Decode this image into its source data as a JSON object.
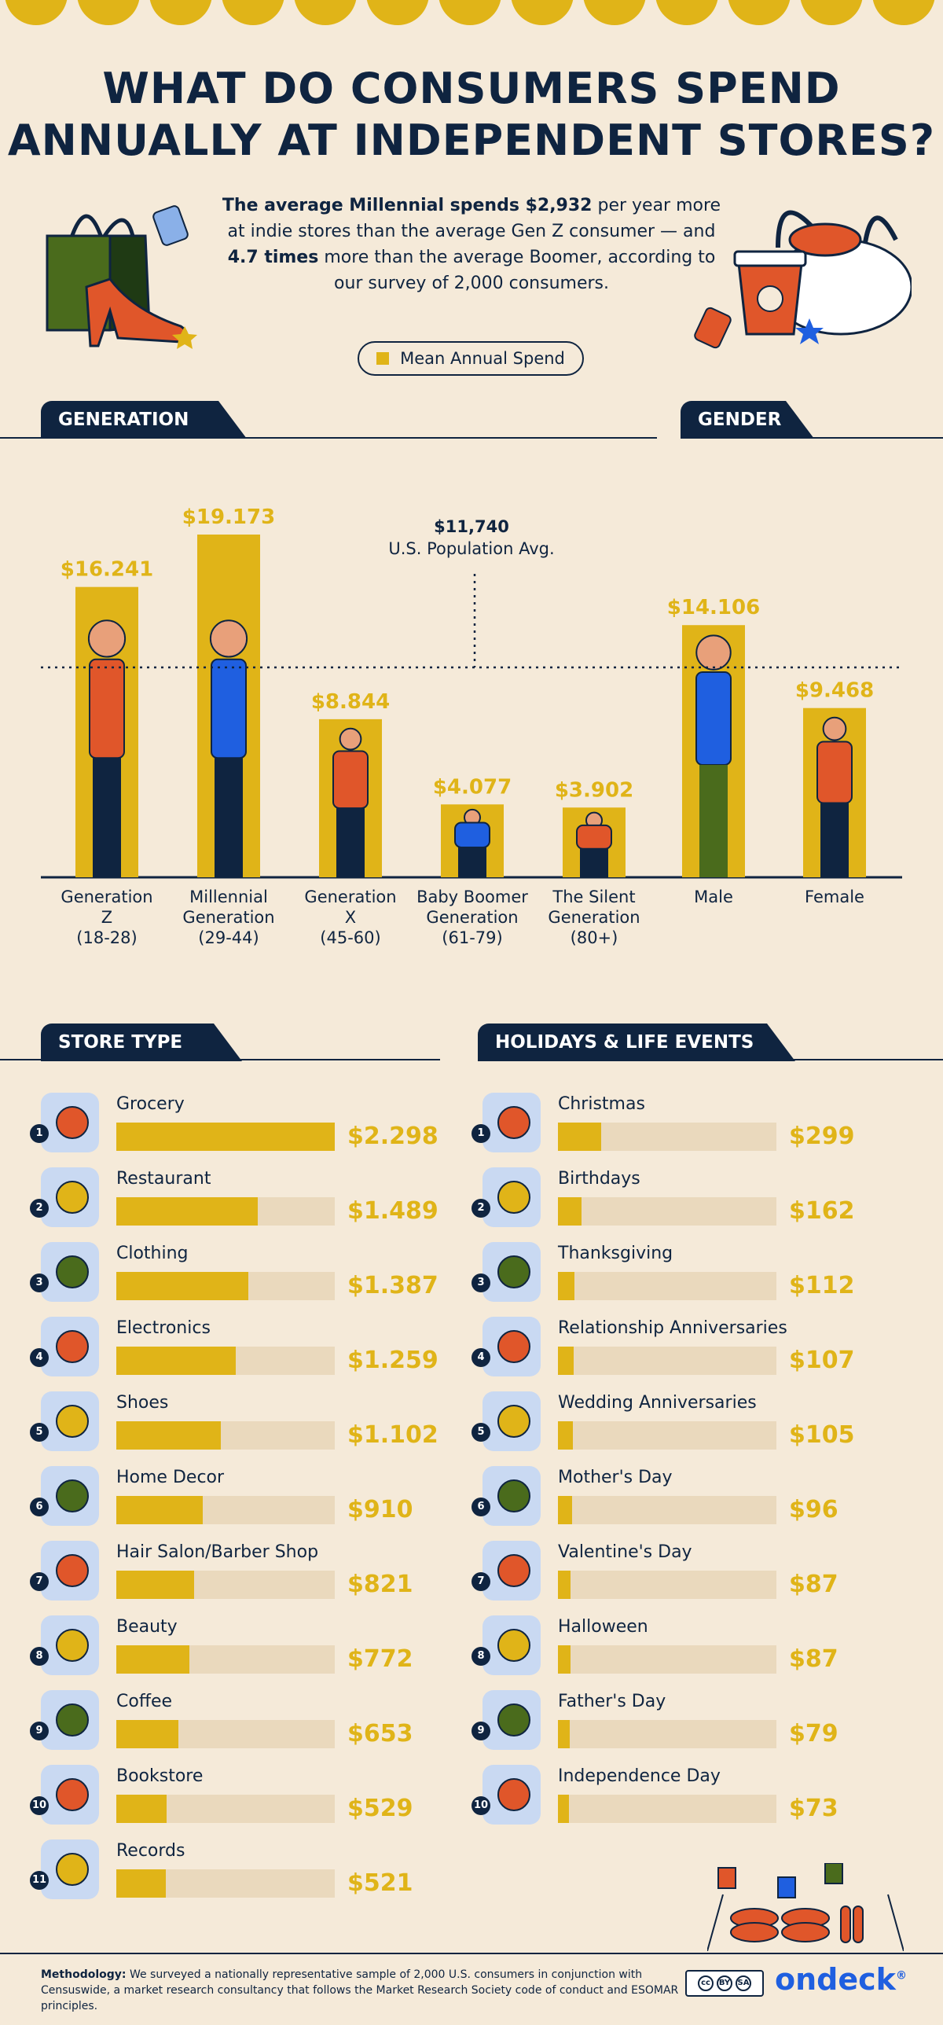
{
  "title_line1": "WHAT DO CONSUMERS SPEND",
  "title_line2": "ANNUALLY AT INDEPENDENT STORES?",
  "intro": {
    "p1_bold": "The average Millennial spends $2,932",
    "p2": " per year more at indie stores than the average Gen Z consumer — and ",
    "p3_bold": "4.7 times",
    "p4": " more than the average Boomer, according to our survey of 2,000 consumers."
  },
  "legend_label": "Mean Annual Spend",
  "colors": {
    "navy": "#0f2440",
    "gold": "#e0b418",
    "cream": "#f5ead9",
    "track": "#ead9bd",
    "icon_bg": "#c9d9f2",
    "brand_blue": "#1f5fe0"
  },
  "sections": {
    "generation": "GENERATION",
    "gender": "GENDER",
    "store_type": "STORE TYPE",
    "holidays": "HOLIDAYS & LIFE EVENTS"
  },
  "average": {
    "value_label": "$11,740",
    "label": "U.S. Population Avg.",
    "value": 11740
  },
  "chart_data": {
    "type": "bar",
    "categories": [
      "Generation Z (18-28)",
      "Millennial Generation (29-44)",
      "Generation X (45-60)",
      "Baby Boomer Generation (61-79)",
      "The Silent Generation (80+)",
      "Male",
      "Female"
    ],
    "category_labels": [
      [
        "Generation",
        "Z",
        "(18-28)"
      ],
      [
        "Millennial",
        "Generation",
        "(29-44)"
      ],
      [
        "Generation",
        "X",
        "(45-60)"
      ],
      [
        "Baby Boomer",
        "Generation",
        "(61-79)"
      ],
      [
        "The Silent",
        "Generation",
        "(80+)"
      ],
      [
        "Male"
      ],
      [
        "Female"
      ]
    ],
    "values": [
      16241,
      19173,
      8844,
      4077,
      3902,
      14106,
      9468
    ],
    "value_labels": [
      "$16.241",
      "$19.173",
      "$8.844",
      "$4.077",
      "$3.902",
      "$14.106",
      "$9.468"
    ],
    "reference_line": 11740,
    "ylim": [
      0,
      20000
    ]
  },
  "store_type": [
    {
      "rank": "1",
      "label": "Grocery",
      "value": 2298,
      "value_label": "$2.298",
      "icon": "basket-icon"
    },
    {
      "rank": "2",
      "label": "Restaurant",
      "value": 1489,
      "value_label": "$1.489",
      "icon": "plate-icon"
    },
    {
      "rank": "3",
      "label": "Clothing",
      "value": 1387,
      "value_label": "$1.387",
      "icon": "jacket-icon"
    },
    {
      "rank": "4",
      "label": "Electronics",
      "value": 1259,
      "value_label": "$1.259",
      "icon": "phone-icon"
    },
    {
      "rank": "5",
      "label": "Shoes",
      "value": 1102,
      "value_label": "$1.102",
      "icon": "heel-shoe-icon"
    },
    {
      "rank": "6",
      "label": "Home Decor",
      "value": 910,
      "value_label": "$910",
      "icon": "vase-icon"
    },
    {
      "rank": "7",
      "label": "Hair Salon/Barber Shop",
      "value": 821,
      "value_label": "$821",
      "icon": "hair-dryer-icon"
    },
    {
      "rank": "8",
      "label": "Beauty",
      "value": 772,
      "value_label": "$772",
      "icon": "mirror-icon"
    },
    {
      "rank": "9",
      "label": "Coffee",
      "value": 653,
      "value_label": "$653",
      "icon": "coffee-cup-icon"
    },
    {
      "rank": "10",
      "label": "Bookstore",
      "value": 529,
      "value_label": "$529",
      "icon": "book-icon"
    },
    {
      "rank": "11",
      "label": "Records",
      "value": 521,
      "value_label": "$521",
      "icon": "record-player-icon"
    }
  ],
  "store_type_max": 2298,
  "holidays": [
    {
      "rank": "1",
      "label": "Christmas",
      "value": 299,
      "value_label": "$299",
      "icon": "christmas-tree-icon"
    },
    {
      "rank": "2",
      "label": "Birthdays",
      "value": 162,
      "value_label": "$162",
      "icon": "cake-icon"
    },
    {
      "rank": "3",
      "label": "Thanksgiving",
      "value": 112,
      "value_label": "$112",
      "icon": "turkey-icon"
    },
    {
      "rank": "4",
      "label": "Relationship Anniversaries",
      "value": 107,
      "value_label": "$107",
      "icon": "wine-glasses-icon"
    },
    {
      "rank": "5",
      "label": "Wedding Anniversaries",
      "value": 105,
      "value_label": "$105",
      "icon": "rings-icon"
    },
    {
      "rank": "6",
      "label": "Mother's Day",
      "value": 96,
      "value_label": "$96",
      "icon": "flowers-icon"
    },
    {
      "rank": "7",
      "label": "Valentine's Day",
      "value": 87,
      "value_label": "$87",
      "icon": "hearts-icon"
    },
    {
      "rank": "8",
      "label": "Halloween",
      "value": 87,
      "value_label": "$87",
      "icon": "pumpkin-icon"
    },
    {
      "rank": "9",
      "label": "Father's Day",
      "value": 79,
      "value_label": "$79",
      "icon": "briefcase-icon"
    },
    {
      "rank": "10",
      "label": "Independence Day",
      "value": 73,
      "value_label": "$73",
      "icon": "flag-icon"
    }
  ],
  "holidays_max": 1500,
  "methodology": {
    "bold": "Methodology:",
    "text": " We surveyed a nationally representative sample of 2,000 U.S. consumers in conjunction with Censuswide, a market research consultancy that follows the Market Research Society code of conduct and ESOMAR principles."
  },
  "license": {
    "by": "BY",
    "sa": "SA"
  },
  "logo": "ondeck"
}
